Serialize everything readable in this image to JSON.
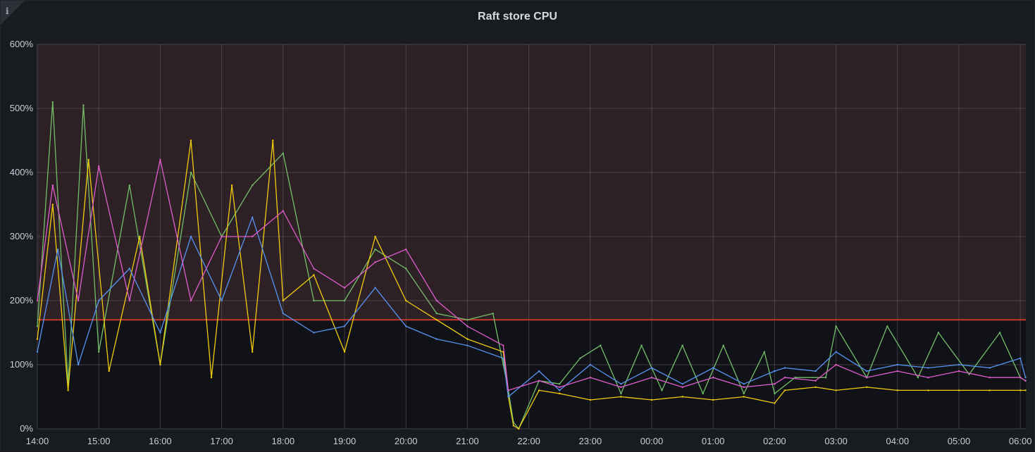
{
  "panel": {
    "title": "Raft store CPU",
    "info_icon": "info-icon"
  },
  "chart_data": {
    "type": "line",
    "title": "Raft store CPU",
    "xlabel": "",
    "ylabel": "",
    "x_ticks": [
      "14:00",
      "15:00",
      "16:00",
      "17:00",
      "18:00",
      "19:00",
      "20:00",
      "21:00",
      "22:00",
      "23:00",
      "00:00",
      "01:00",
      "02:00",
      "03:00",
      "04:00",
      "05:00",
      "06:00"
    ],
    "y_ticks": [
      "0%",
      "100%",
      "200%",
      "300%",
      "400%",
      "500%",
      "600%"
    ],
    "ylim": [
      0,
      600
    ],
    "y_unit": "%",
    "x_range": [
      "14:00",
      "06:05"
    ],
    "threshold": {
      "value": 170,
      "color": "#c4372a",
      "fill": "#2d2125",
      "direction": "above"
    },
    "grid": true,
    "legend": "none",
    "series_colors": [
      "#73bf69",
      "#f2cc0c",
      "#5794f2",
      "#ff9830",
      "#b877d9",
      "#6ed0e0",
      "#e05ccf"
    ],
    "series": [
      {
        "color": "#73bf69",
        "points": [
          [
            "14:00",
            160
          ],
          [
            "14:15",
            510
          ],
          [
            "14:30",
            70
          ],
          [
            "14:45",
            505
          ],
          [
            "15:00",
            120
          ],
          [
            "15:30",
            380
          ],
          [
            "16:00",
            100
          ],
          [
            "16:30",
            400
          ],
          [
            "17:00",
            300
          ],
          [
            "17:30",
            380
          ],
          [
            "18:00",
            430
          ],
          [
            "18:30",
            200
          ],
          [
            "19:00",
            200
          ],
          [
            "19:30",
            280
          ],
          [
            "20:00",
            250
          ],
          [
            "20:30",
            180
          ],
          [
            "21:00",
            170
          ],
          [
            "21:25",
            180
          ],
          [
            "21:35",
            100
          ],
          [
            "21:40",
            60
          ],
          [
            "21:45",
            10
          ],
          [
            "21:50",
            0
          ],
          [
            "22:10",
            75
          ],
          [
            "22:30",
            70
          ],
          [
            "22:50",
            110
          ],
          [
            "23:10",
            130
          ],
          [
            "23:30",
            55
          ],
          [
            "23:50",
            130
          ],
          [
            "00:10",
            60
          ],
          [
            "00:30",
            130
          ],
          [
            "00:50",
            55
          ],
          [
            "01:10",
            130
          ],
          [
            "01:30",
            55
          ],
          [
            "01:50",
            120
          ],
          [
            "02:00",
            55
          ],
          [
            "02:20",
            80
          ],
          [
            "02:50",
            80
          ],
          [
            "03:00",
            160
          ],
          [
            "03:30",
            80
          ],
          [
            "03:50",
            160
          ],
          [
            "04:20",
            80
          ],
          [
            "04:40",
            150
          ],
          [
            "05:10",
            85
          ],
          [
            "05:40",
            150
          ],
          [
            "06:00",
            80
          ],
          [
            "06:05",
            75
          ]
        ]
      },
      {
        "color": "#f2cc0c",
        "points": [
          [
            "14:00",
            140
          ],
          [
            "14:15",
            350
          ],
          [
            "14:30",
            60
          ],
          [
            "14:50",
            420
          ],
          [
            "15:10",
            90
          ],
          [
            "15:40",
            300
          ],
          [
            "16:00",
            100
          ],
          [
            "16:30",
            450
          ],
          [
            "16:50",
            80
          ],
          [
            "17:10",
            380
          ],
          [
            "17:30",
            120
          ],
          [
            "17:50",
            450
          ],
          [
            "18:00",
            200
          ],
          [
            "18:30",
            240
          ],
          [
            "19:00",
            120
          ],
          [
            "19:30",
            300
          ],
          [
            "20:00",
            200
          ],
          [
            "20:30",
            170
          ],
          [
            "21:00",
            140
          ],
          [
            "21:35",
            120
          ],
          [
            "21:40",
            50
          ],
          [
            "21:45",
            5
          ],
          [
            "21:50",
            0
          ],
          [
            "22:10",
            60
          ],
          [
            "22:30",
            55
          ],
          [
            "23:00",
            45
          ],
          [
            "23:30",
            50
          ],
          [
            "00:00",
            45
          ],
          [
            "00:30",
            50
          ],
          [
            "01:00",
            45
          ],
          [
            "01:30",
            50
          ],
          [
            "02:00",
            40
          ],
          [
            "02:10",
            60
          ],
          [
            "02:40",
            65
          ],
          [
            "03:00",
            60
          ],
          [
            "03:30",
            65
          ],
          [
            "04:00",
            60
          ],
          [
            "04:30",
            60
          ],
          [
            "05:00",
            60
          ],
          [
            "05:30",
            60
          ],
          [
            "06:00",
            60
          ],
          [
            "06:05",
            60
          ]
        ]
      },
      {
        "color": "#5794f2",
        "points": [
          [
            "14:00",
            120
          ],
          [
            "14:20",
            280
          ],
          [
            "14:40",
            100
          ],
          [
            "15:00",
            200
          ],
          [
            "15:30",
            250
          ],
          [
            "16:00",
            150
          ],
          [
            "16:30",
            300
          ],
          [
            "17:00",
            200
          ],
          [
            "17:30",
            330
          ],
          [
            "18:00",
            180
          ],
          [
            "18:30",
            150
          ],
          [
            "19:00",
            160
          ],
          [
            "19:30",
            220
          ],
          [
            "20:00",
            160
          ],
          [
            "20:30",
            140
          ],
          [
            "21:00",
            130
          ],
          [
            "21:35",
            110
          ],
          [
            "21:40",
            50
          ],
          [
            "22:10",
            90
          ],
          [
            "22:30",
            60
          ],
          [
            "23:00",
            100
          ],
          [
            "23:30",
            70
          ],
          [
            "00:00",
            95
          ],
          [
            "00:30",
            70
          ],
          [
            "01:00",
            95
          ],
          [
            "01:30",
            70
          ],
          [
            "02:00",
            90
          ],
          [
            "02:10",
            95
          ],
          [
            "02:40",
            90
          ],
          [
            "03:00",
            120
          ],
          [
            "03:30",
            90
          ],
          [
            "04:00",
            100
          ],
          [
            "04:30",
            95
          ],
          [
            "05:00",
            100
          ],
          [
            "05:30",
            95
          ],
          [
            "06:00",
            110
          ],
          [
            "06:05",
            80
          ]
        ]
      },
      {
        "color": "#e05ccf",
        "points": [
          [
            "14:00",
            200
          ],
          [
            "14:15",
            380
          ],
          [
            "14:40",
            200
          ],
          [
            "15:00",
            410
          ],
          [
            "15:30",
            200
          ],
          [
            "16:00",
            420
          ],
          [
            "16:30",
            200
          ],
          [
            "17:00",
            300
          ],
          [
            "17:30",
            300
          ],
          [
            "18:00",
            340
          ],
          [
            "18:30",
            250
          ],
          [
            "19:00",
            220
          ],
          [
            "19:30",
            260
          ],
          [
            "20:00",
            280
          ],
          [
            "20:30",
            200
          ],
          [
            "21:00",
            160
          ],
          [
            "21:35",
            130
          ],
          [
            "21:40",
            60
          ],
          [
            "22:10",
            75
          ],
          [
            "22:30",
            65
          ],
          [
            "23:00",
            80
          ],
          [
            "23:30",
            65
          ],
          [
            "00:00",
            80
          ],
          [
            "00:30",
            65
          ],
          [
            "01:00",
            80
          ],
          [
            "01:30",
            65
          ],
          [
            "02:00",
            70
          ],
          [
            "02:10",
            80
          ],
          [
            "02:40",
            75
          ],
          [
            "03:00",
            100
          ],
          [
            "03:30",
            80
          ],
          [
            "04:00",
            90
          ],
          [
            "04:30",
            80
          ],
          [
            "05:00",
            90
          ],
          [
            "05:30",
            80
          ],
          [
            "06:00",
            80
          ],
          [
            "06:05",
            75
          ]
        ]
      }
    ]
  }
}
